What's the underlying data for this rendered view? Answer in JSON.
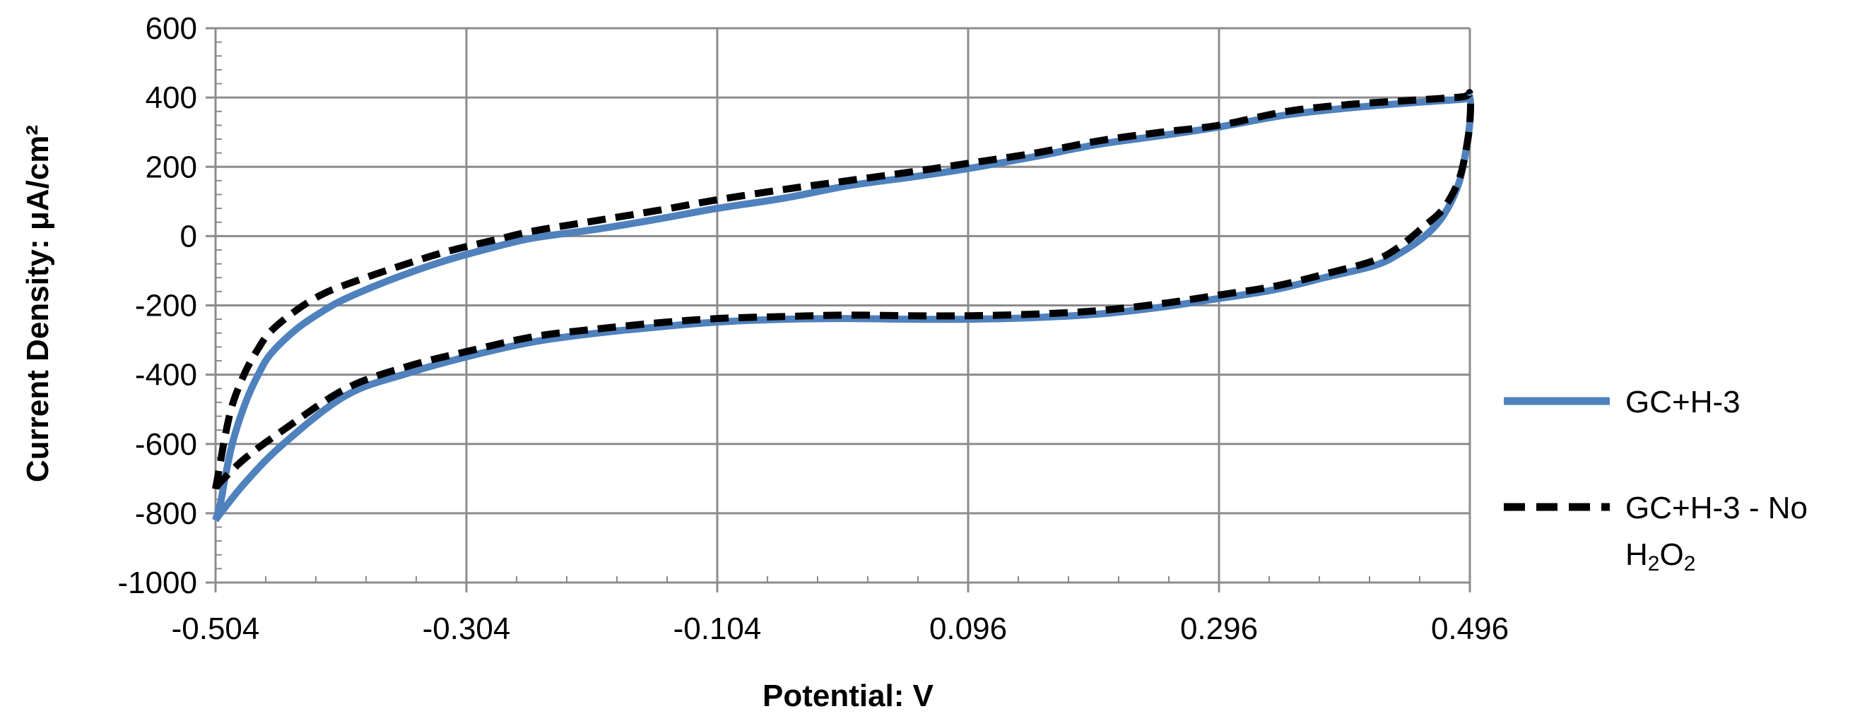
{
  "chart_data": {
    "type": "line",
    "xlabel": "Potential: V",
    "ylabel": "Current Density: μA/cm²",
    "xlim": [
      -0.504,
      0.496
    ],
    "ylim": [
      -1000,
      600
    ],
    "x_ticks": [
      "-0.504",
      "-0.304",
      "-0.104",
      "0.096",
      "0.296",
      "0.496"
    ],
    "y_ticks": [
      "600",
      "400",
      "200",
      "0",
      "-200",
      "-400",
      "-600",
      "-800",
      "-1000"
    ],
    "grid": true,
    "legend_position": "right",
    "series": [
      {
        "name": "GC+H-3",
        "color": "#4F81BD",
        "style": "solid",
        "points": [
          [
            -0.504,
            -820
          ],
          [
            -0.5,
            -770
          ],
          [
            -0.496,
            -690
          ],
          [
            -0.49,
            -590
          ],
          [
            -0.48,
            -480
          ],
          [
            -0.47,
            -400
          ],
          [
            -0.46,
            -340
          ],
          [
            -0.44,
            -270
          ],
          [
            -0.42,
            -220
          ],
          [
            -0.4,
            -180
          ],
          [
            -0.36,
            -120
          ],
          [
            -0.32,
            -70
          ],
          [
            -0.28,
            -30
          ],
          [
            -0.25,
            -5
          ],
          [
            -0.2,
            20
          ],
          [
            -0.15,
            50
          ],
          [
            -0.104,
            80
          ],
          [
            -0.05,
            110
          ],
          [
            0.0,
            145
          ],
          [
            0.05,
            170
          ],
          [
            0.096,
            195
          ],
          [
            0.15,
            230
          ],
          [
            0.2,
            265
          ],
          [
            0.25,
            290
          ],
          [
            0.296,
            315
          ],
          [
            0.35,
            350
          ],
          [
            0.4,
            370
          ],
          [
            0.45,
            385
          ],
          [
            0.49,
            395
          ],
          [
            0.496,
            400
          ],
          [
            0.496,
            330
          ],
          [
            0.493,
            250
          ],
          [
            0.487,
            150
          ],
          [
            0.475,
            60
          ],
          [
            0.46,
            0
          ],
          [
            0.44,
            -50
          ],
          [
            0.42,
            -85
          ],
          [
            0.38,
            -120
          ],
          [
            0.34,
            -155
          ],
          [
            0.296,
            -180
          ],
          [
            0.25,
            -205
          ],
          [
            0.2,
            -225
          ],
          [
            0.15,
            -235
          ],
          [
            0.096,
            -240
          ],
          [
            0.05,
            -240
          ],
          [
            0.0,
            -238
          ],
          [
            -0.05,
            -240
          ],
          [
            -0.104,
            -248
          ],
          [
            -0.15,
            -262
          ],
          [
            -0.2,
            -280
          ],
          [
            -0.25,
            -305
          ],
          [
            -0.3,
            -345
          ],
          [
            -0.35,
            -395
          ],
          [
            -0.4,
            -460
          ],
          [
            -0.45,
            -600
          ],
          [
            -0.48,
            -710
          ],
          [
            -0.5,
            -800
          ],
          [
            -0.504,
            -820
          ]
        ]
      },
      {
        "name": "GC+H-3 - No H₂O₂",
        "color": "#000000",
        "style": "dashed",
        "points": [
          [
            -0.504,
            -730
          ],
          [
            -0.5,
            -650
          ],
          [
            -0.496,
            -570
          ],
          [
            -0.49,
            -480
          ],
          [
            -0.48,
            -390
          ],
          [
            -0.47,
            -325
          ],
          [
            -0.46,
            -275
          ],
          [
            -0.44,
            -215
          ],
          [
            -0.42,
            -170
          ],
          [
            -0.4,
            -140
          ],
          [
            -0.36,
            -90
          ],
          [
            -0.32,
            -45
          ],
          [
            -0.28,
            -10
          ],
          [
            -0.25,
            15
          ],
          [
            -0.2,
            45
          ],
          [
            -0.15,
            75
          ],
          [
            -0.104,
            105
          ],
          [
            -0.05,
            135
          ],
          [
            0.0,
            160
          ],
          [
            0.05,
            185
          ],
          [
            0.096,
            210
          ],
          [
            0.15,
            240
          ],
          [
            0.2,
            275
          ],
          [
            0.25,
            300
          ],
          [
            0.296,
            320
          ],
          [
            0.35,
            360
          ],
          [
            0.4,
            380
          ],
          [
            0.45,
            392
          ],
          [
            0.49,
            402
          ],
          [
            0.496,
            410
          ],
          [
            0.496,
            330
          ],
          [
            0.493,
            250
          ],
          [
            0.487,
            160
          ],
          [
            0.475,
            80
          ],
          [
            0.46,
            30
          ],
          [
            0.44,
            -30
          ],
          [
            0.42,
            -70
          ],
          [
            0.38,
            -110
          ],
          [
            0.34,
            -145
          ],
          [
            0.296,
            -170
          ],
          [
            0.25,
            -195
          ],
          [
            0.2,
            -215
          ],
          [
            0.15,
            -225
          ],
          [
            0.096,
            -230
          ],
          [
            0.05,
            -230
          ],
          [
            0.0,
            -228
          ],
          [
            -0.05,
            -232
          ],
          [
            -0.104,
            -238
          ],
          [
            -0.15,
            -250
          ],
          [
            -0.2,
            -268
          ],
          [
            -0.25,
            -290
          ],
          [
            -0.3,
            -330
          ],
          [
            -0.35,
            -375
          ],
          [
            -0.4,
            -440
          ],
          [
            -0.45,
            -560
          ],
          [
            -0.48,
            -640
          ],
          [
            -0.5,
            -710
          ],
          [
            -0.504,
            -730
          ]
        ]
      }
    ]
  },
  "legend": {
    "entry1": "GC+H-3",
    "entry2_line1": "GC+H-3 - No",
    "entry2_h": "H",
    "entry2_sub2": "2",
    "entry2_o": "O",
    "entry2_sub2b": "2"
  }
}
